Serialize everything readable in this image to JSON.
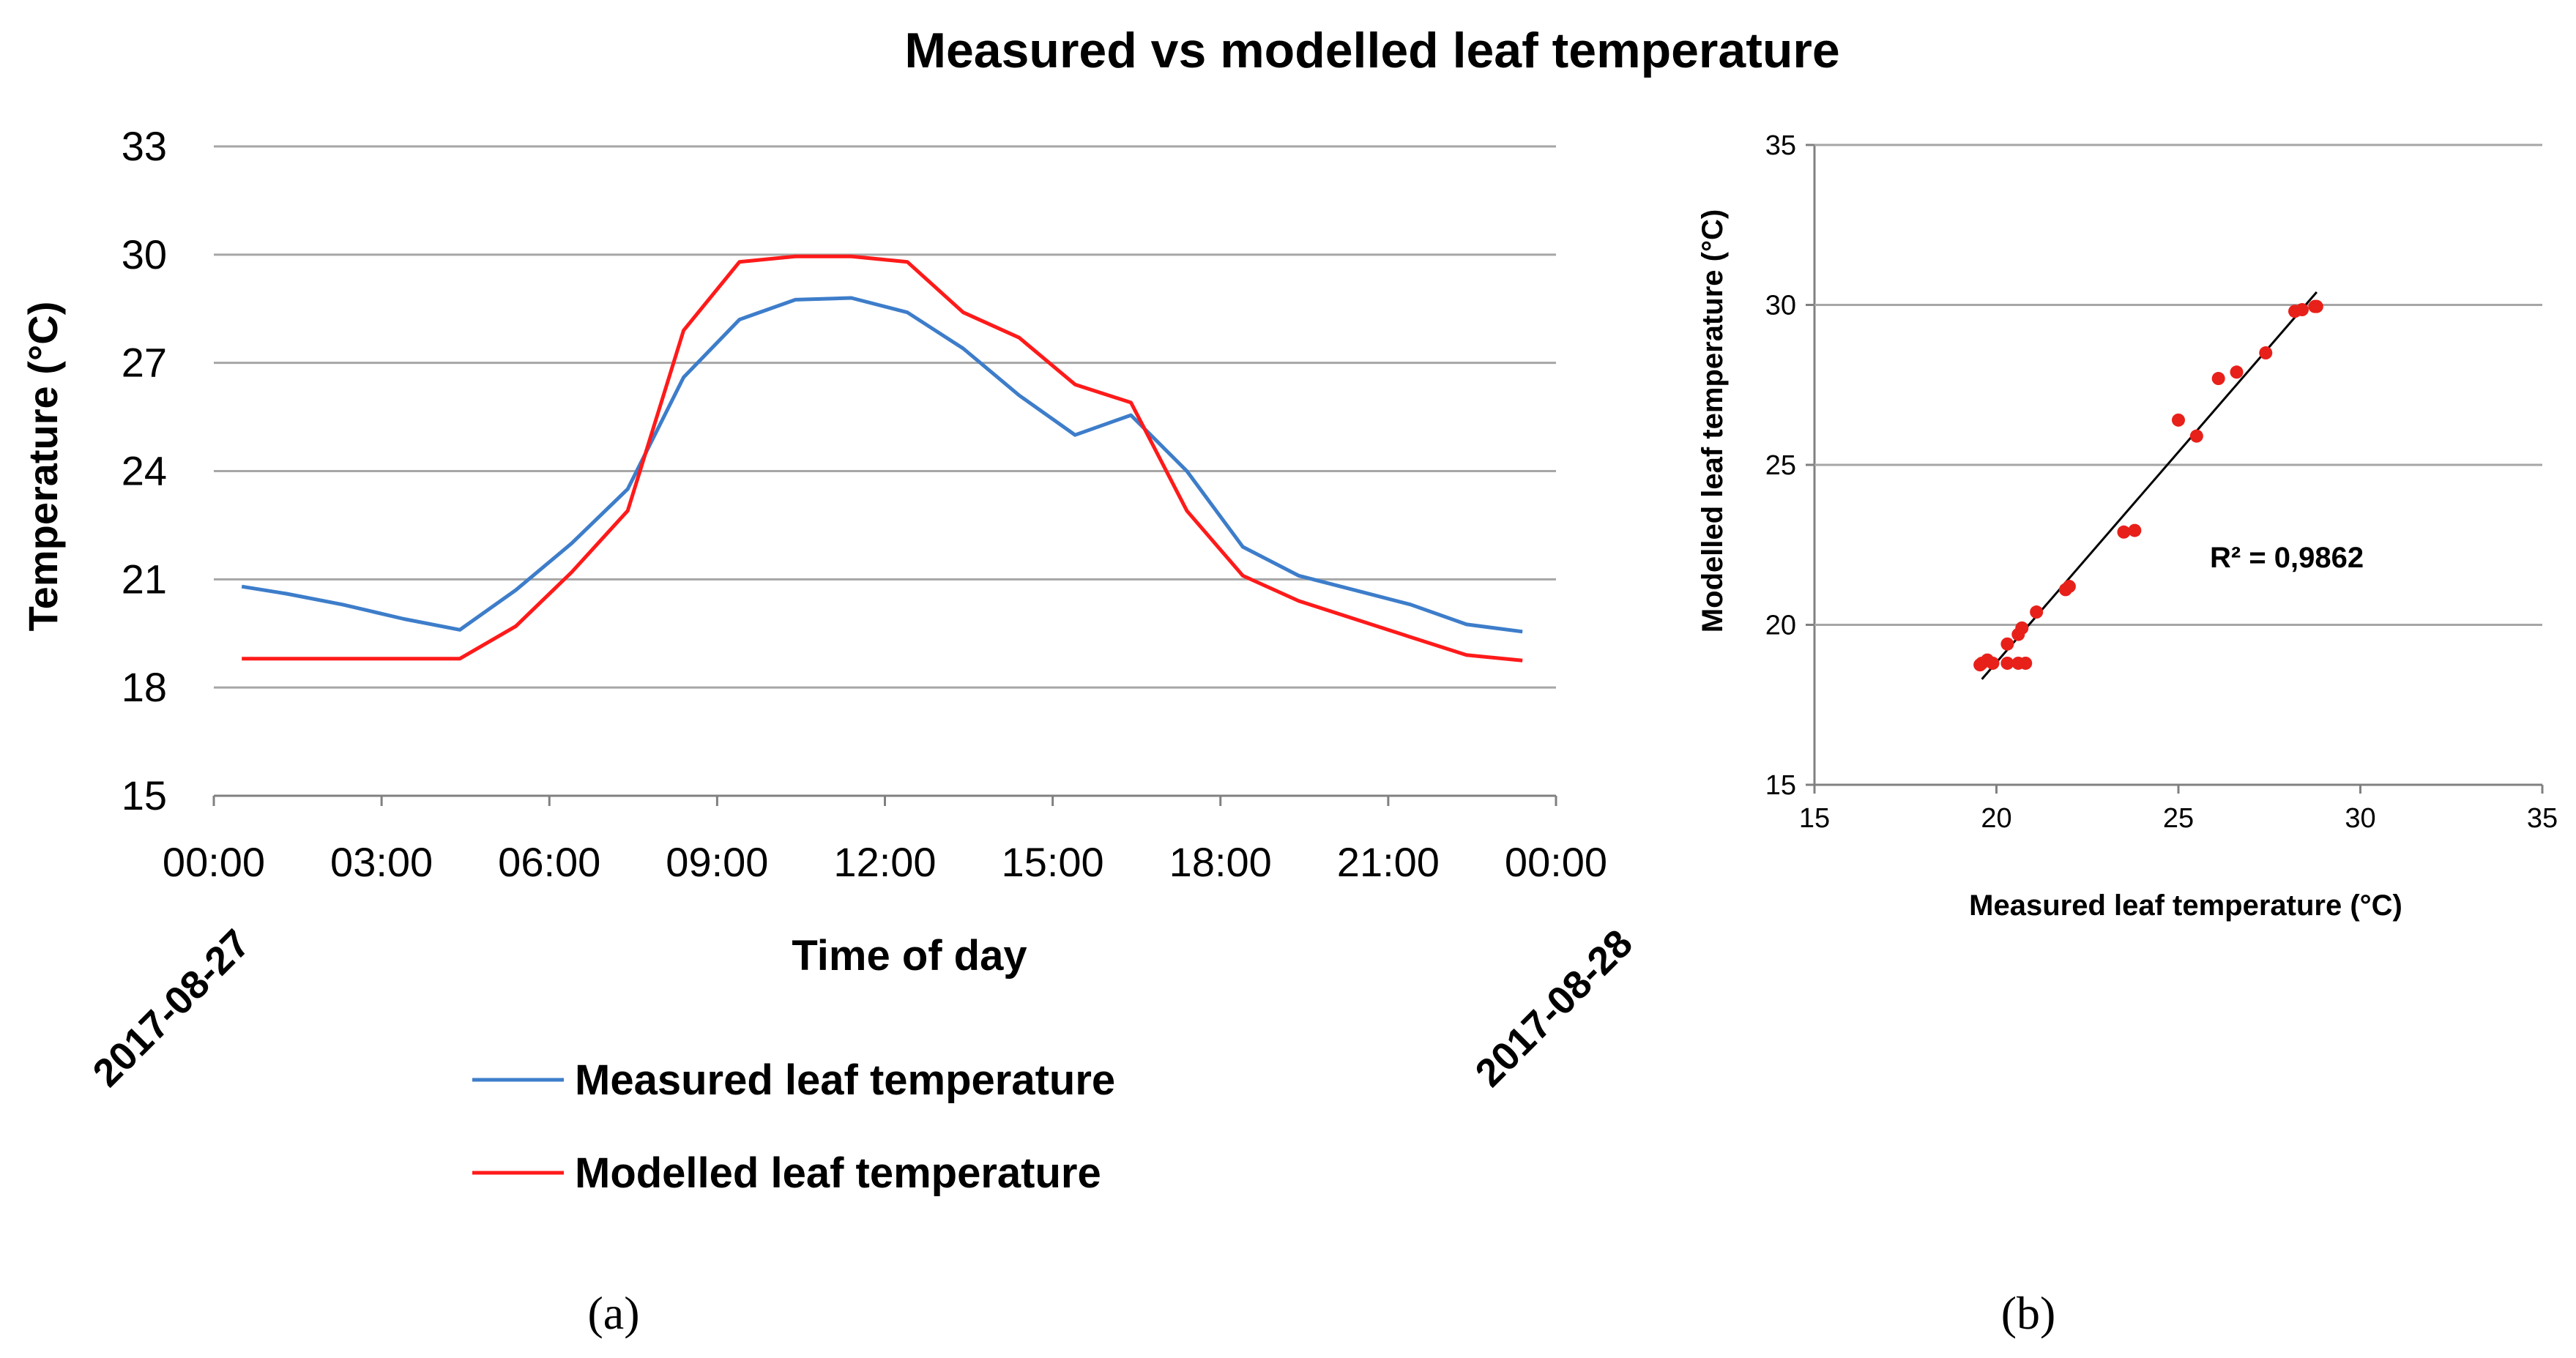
{
  "figure": {
    "title": "Measured vs modelled leaf temperature",
    "panel_a_label": "(a)",
    "panel_b_label": "(b)"
  },
  "colors": {
    "measured": "#3d7dca",
    "modelled": "#ff1a1a",
    "scatter_points": "#e8201a",
    "trendline": "#000000",
    "grid": "#a6a6a6",
    "axis": "#808080"
  },
  "chart_data": [
    {
      "type": "line",
      "title": "",
      "xlabel": "Time of day",
      "ylabel": "Temperature (°C)",
      "ylim": [
        15,
        33
      ],
      "yticks": [
        15,
        18,
        21,
        24,
        27,
        30,
        33
      ],
      "xlim": [
        0,
        24
      ],
      "xticks": [
        0,
        3,
        6,
        9,
        12,
        15,
        18,
        21,
        24
      ],
      "xtick_labels": [
        "00:00",
        "03:00",
        "06:00",
        "09:00",
        "12:00",
        "15:00",
        "18:00",
        "21:00",
        "00:00"
      ],
      "date_labels": [
        {
          "x": 0,
          "text": "2017-08-27"
        },
        {
          "x": 24,
          "text": "2017-08-28"
        }
      ],
      "grid": "horizontal",
      "legend_position": "bottom",
      "x": [
        0.5,
        1.3,
        2.3,
        3.4,
        4.4,
        5.4,
        6.4,
        7.4,
        8.4,
        9.4,
        10.4,
        11.4,
        12.4,
        13.4,
        14.4,
        15.4,
        16.4,
        17.4,
        18.4,
        19.4,
        20.4,
        21.4,
        22.4,
        23.4
      ],
      "series": [
        {
          "name": "Measured leaf temperature",
          "color": "#3d7dca",
          "values": [
            20.8,
            20.6,
            20.3,
            19.9,
            19.6,
            20.7,
            22.0,
            23.5,
            26.6,
            28.2,
            28.75,
            28.8,
            28.4,
            27.4,
            26.1,
            25.0,
            25.55,
            24.0,
            21.9,
            21.1,
            20.7,
            20.3,
            19.75,
            19.55
          ]
        },
        {
          "name": "Modelled leaf temperature",
          "color": "#ff1a1a",
          "values": [
            18.8,
            18.8,
            18.8,
            18.8,
            18.8,
            19.7,
            21.2,
            22.9,
            27.9,
            29.8,
            29.95,
            29.95,
            29.8,
            28.4,
            27.7,
            26.4,
            25.9,
            22.9,
            21.1,
            20.4,
            19.9,
            19.4,
            18.9,
            18.75
          ]
        }
      ]
    },
    {
      "type": "scatter",
      "title": "",
      "xlabel": "Measured leaf temperature (°C)",
      "ylabel": "Modelled leaf temperature (°C)",
      "xlim": [
        15,
        35
      ],
      "ylim": [
        15,
        35
      ],
      "xticks": [
        15,
        20,
        25,
        30,
        35
      ],
      "yticks": [
        15,
        20,
        25,
        30,
        35
      ],
      "grid": "horizontal",
      "annotation": "R² = 0,9862",
      "trendline": {
        "x": [
          19.6,
          28.8
        ],
        "y": [
          18.3,
          30.4
        ]
      },
      "points": [
        {
          "x": 19.55,
          "y": 18.75
        },
        {
          "x": 19.6,
          "y": 18.8
        },
        {
          "x": 19.75,
          "y": 18.9
        },
        {
          "x": 19.9,
          "y": 18.8
        },
        {
          "x": 20.3,
          "y": 18.8
        },
        {
          "x": 20.3,
          "y": 19.4
        },
        {
          "x": 20.6,
          "y": 19.7
        },
        {
          "x": 20.6,
          "y": 18.8
        },
        {
          "x": 20.7,
          "y": 19.9
        },
        {
          "x": 20.8,
          "y": 18.8
        },
        {
          "x": 21.1,
          "y": 20.4
        },
        {
          "x": 21.9,
          "y": 21.1
        },
        {
          "x": 22.0,
          "y": 21.2
        },
        {
          "x": 23.5,
          "y": 22.9
        },
        {
          "x": 23.8,
          "y": 22.95
        },
        {
          "x": 25.0,
          "y": 26.4
        },
        {
          "x": 25.5,
          "y": 25.9
        },
        {
          "x": 26.1,
          "y": 27.7
        },
        {
          "x": 26.6,
          "y": 27.9
        },
        {
          "x": 27.4,
          "y": 28.5
        },
        {
          "x": 28.2,
          "y": 29.8
        },
        {
          "x": 28.4,
          "y": 29.85
        },
        {
          "x": 28.75,
          "y": 29.95
        },
        {
          "x": 28.8,
          "y": 29.95
        }
      ]
    }
  ]
}
